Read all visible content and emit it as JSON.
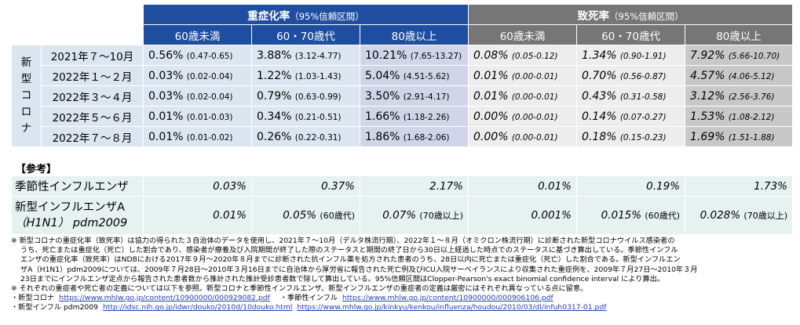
{
  "header": {
    "severe_title": "重症化率",
    "severe_sub": "（95%信頼区間）",
    "fatal_title": "致死率",
    "fatal_sub": "（95%信頼区間）",
    "age_groups": [
      "60歳未満",
      "60・70歳代",
      "80歳以上"
    ]
  },
  "covid_label": "新型コロナ",
  "rows": [
    {
      "period": "2021年７～10月",
      "severe": [
        {
          "v": "0.56%",
          "ci": "(0.47-0.65)"
        },
        {
          "v": "3.88%",
          "ci": "(3.12-4.77)"
        },
        {
          "v": "10.21%",
          "ci": "(7.65-13.27)"
        }
      ],
      "fatal": [
        {
          "v": "0.08%",
          "ci": "(0.05-0.12)"
        },
        {
          "v": "1.34%",
          "ci": "(0.90-1.91)"
        },
        {
          "v": "7.92%",
          "ci": "(5.66-10.70)"
        }
      ]
    },
    {
      "period": "2022年１～２月",
      "severe": [
        {
          "v": "0.03%",
          "ci": "(0.02-0.04)"
        },
        {
          "v": "1.22%",
          "ci": "(1.03-1.43)"
        },
        {
          "v": "5.04%",
          "ci": "(4.51-5.62)"
        }
      ],
      "fatal": [
        {
          "v": "0.01%",
          "ci": "(0.00-0.01)"
        },
        {
          "v": "0.70%",
          "ci": "(0.56-0.87)"
        },
        {
          "v": "4.57%",
          "ci": "(4.06-5.12)"
        }
      ]
    },
    {
      "period": "2022年３～４月",
      "severe": [
        {
          "v": "0.03%",
          "ci": "(0.02-0.04)"
        },
        {
          "v": "0.79%",
          "ci": "(0.63-0.99)"
        },
        {
          "v": "3.50%",
          "ci": "(2.91-4.17)"
        }
      ],
      "fatal": [
        {
          "v": "0.01%",
          "ci": "(0.00-0.01)"
        },
        {
          "v": "0.43%",
          "ci": "(0.31-0.58)"
        },
        {
          "v": "3.12%",
          "ci": "(2.56-3.76)"
        }
      ]
    },
    {
      "period": "2022年５～６月",
      "severe": [
        {
          "v": "0.01%",
          "ci": "(0.01-0.03)"
        },
        {
          "v": "0.34%",
          "ci": "(0.21-0.51)"
        },
        {
          "v": "1.66%",
          "ci": "(1.18-2.26)"
        }
      ],
      "fatal": [
        {
          "v": "0.00%",
          "ci": "(0.00-0.01)"
        },
        {
          "v": "0.14%",
          "ci": "(0.07-0.27)"
        },
        {
          "v": "1.53%",
          "ci": "(1.08-2.12)"
        }
      ]
    },
    {
      "period": "2022年７～８月",
      "severe": [
        {
          "v": "0.01%",
          "ci": "(0.01-0.02)"
        },
        {
          "v": "0.26%",
          "ci": "(0.22-0.31)"
        },
        {
          "v": "1.86%",
          "ci": "(1.68-2.06)"
        }
      ],
      "fatal": [
        {
          "v": "0.00%",
          "ci": "(0.00-0.01)"
        },
        {
          "v": "0.18%",
          "ci": "(0.15-0.23)"
        },
        {
          "v": "1.69%",
          "ci": "(1.51-1.88)"
        }
      ]
    }
  ],
  "reference": {
    "label": "【参考】",
    "seasonal": {
      "name": "季節性インフルエンザ",
      "values": [
        "0.03%",
        "0.37%",
        "2.17%",
        "0.01%",
        "0.19%",
        "1.73%"
      ]
    },
    "h1n1": {
      "name1": "新型インフルエンザA",
      "name2": "（H1N1） pdm2009",
      "cells": [
        {
          "v": "0.01%",
          "suf": ""
        },
        {
          "v": "0.05%",
          "suf": "(60歳代)"
        },
        {
          "v": "0.07%",
          "suf": "(70歳以上)"
        },
        {
          "v": "0.001%",
          "suf": ""
        },
        {
          "v": "0.015%",
          "suf": "(60歳代)"
        },
        {
          "v": "0.028%",
          "suf": "(70歳以上)"
        }
      ]
    }
  },
  "notes": {
    "n1": "※ 新型コロナの重症化率（致死率）は協力の得られた３自治体のデータを使用し、2021年７～10月（デルタ株流行期）、2022年１～８月（オミクロン株流行期）に診断された新型コロナウイルス感染者の",
    "n2": "うち、死亡または重症化（死亡）した割合であり、感染者が療養及び入院期間が終了した際のステータスと期間の終了日から30日以上経過した時点でのステータスに基づき算出している。季節性インフル",
    "n3": "エンザの重症化率（致死率）はNDBにおける2017年９月～2020年８月までに診断された抗インフル薬を処方された患者のうち、28日以内に死亡または重症化（死亡）した割合である。新型インフルエン",
    "n4": "ザA（H1N1）pdm2009については、2009年７月28日～2010年３月16日までに自治体から厚労省に報告された死亡例及びICU入院サーベイランスにより収集された重症例を、2009年７月27日～2010年３月",
    "n5": "23日までにインフルエンザ定点から報告された患者数から推計された推計受診患者数で除して算出している。95%信頼区間はClopper-Pearson's exact binomial confidence interval により算出。",
    "n6": "※ それぞれの重症者や死亡者の定義については以下を参照。新型コロナと季節性インフルエンザ、新型インフルエンザの重症者の定義は厳密にはそれぞれ異なっている点に留意。",
    "src1_label": "・新型コロナ",
    "src1_url": "https://www.mhlw.go.jp/content/10900000/000929082.pdf",
    "src2_label": "・季節性インフル",
    "src2_url": "https://www.mhlw.go.jp/content/10900000/000906106.pdf",
    "src3_label": "・新型インフル pdm2009",
    "src3_url1": "http://idsc.nih.go.jp/idwr/douko/2010d/10douko.html",
    "src3_url2": "https://www.mhlw.go.jp/kinkyu/kenkou/influenza/houdou/2010/03/dl/infuh0317-01.pdf"
  }
}
